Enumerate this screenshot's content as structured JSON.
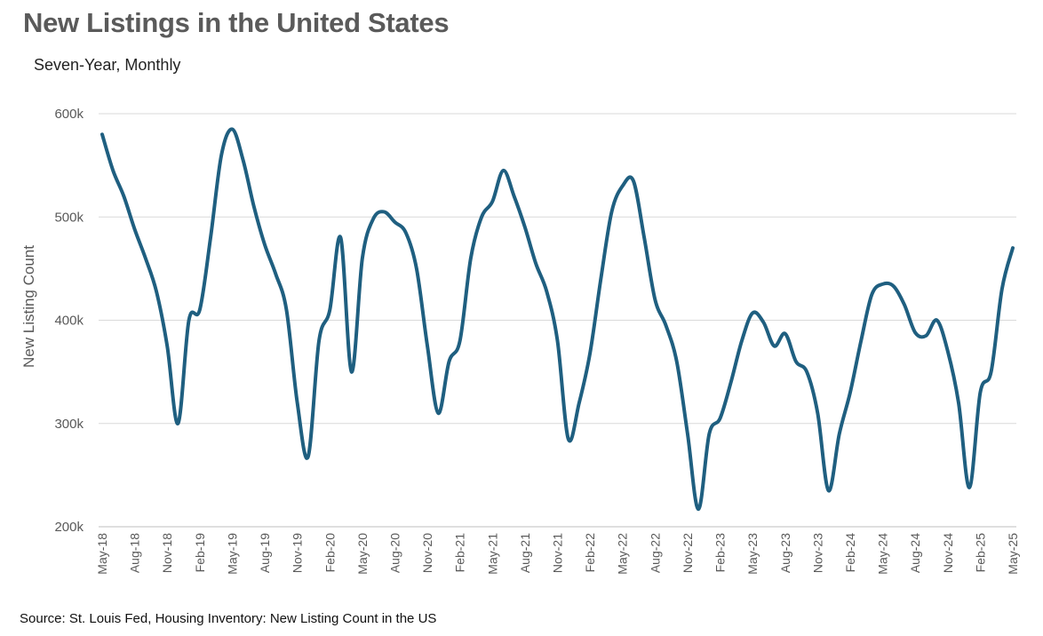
{
  "header": {
    "title": "New Listings in the United States",
    "subtitle": "Seven-Year, Monthly"
  },
  "footer": {
    "source": "Source: St. Louis Fed, Housing Inventory: New Listing Count in the US"
  },
  "colors": {
    "line": "#1f5f80",
    "grid": "#d9d9d9",
    "text": "#595959"
  },
  "chart_data": {
    "type": "line",
    "ylabel": "New Listing Count",
    "xlabel": "",
    "ylim": [
      200000,
      600000
    ],
    "yticks": [
      200000,
      300000,
      400000,
      500000,
      600000
    ],
    "ytick_labels": [
      "200k",
      "300k",
      "400k",
      "500k",
      "600k"
    ],
    "xtick_labels": [
      "May-18",
      "Aug-18",
      "Nov-18",
      "Feb-19",
      "May-19",
      "Aug-19",
      "Nov-19",
      "Feb-20",
      "May-20",
      "Aug-20",
      "Nov-20",
      "Feb-21",
      "May-21",
      "Aug-21",
      "Nov-21",
      "Feb-22",
      "May-22",
      "Aug-22",
      "Nov-22",
      "Feb-23",
      "May-23",
      "Aug-23",
      "Nov-23",
      "Feb-24",
      "May-24",
      "Aug-24",
      "Nov-24",
      "Feb-25",
      "May-25"
    ],
    "grid": true,
    "legend": "none",
    "series": [
      {
        "x": [
          "May-18",
          "Jun-18",
          "Jul-18",
          "Aug-18",
          "Sep-18",
          "Oct-18",
          "Nov-18",
          "Dec-18",
          "Jan-19",
          "Feb-19",
          "Mar-19",
          "Apr-19",
          "May-19",
          "Jun-19",
          "Jul-19",
          "Aug-19",
          "Sep-19",
          "Oct-19",
          "Nov-19",
          "Dec-19",
          "Jan-20",
          "Feb-20",
          "Mar-20",
          "Apr-20",
          "May-20",
          "Jun-20",
          "Jul-20",
          "Aug-20",
          "Sep-20",
          "Oct-20",
          "Nov-20",
          "Dec-20",
          "Jan-21",
          "Feb-21",
          "Mar-21",
          "Apr-21",
          "May-21",
          "Jun-21",
          "Jul-21",
          "Aug-21",
          "Sep-21",
          "Oct-21",
          "Nov-21",
          "Dec-21",
          "Jan-22",
          "Feb-22",
          "Mar-22",
          "Apr-22",
          "May-22",
          "Jun-22",
          "Jul-22",
          "Aug-22",
          "Sep-22",
          "Oct-22",
          "Nov-22",
          "Dec-22",
          "Jan-23",
          "Feb-23",
          "Mar-23",
          "Apr-23",
          "May-23",
          "Jun-23",
          "Jul-23",
          "Aug-23",
          "Sep-23",
          "Oct-23",
          "Nov-23",
          "Dec-23",
          "Jan-24",
          "Feb-24",
          "Mar-24",
          "Apr-24",
          "May-24",
          "Jun-24",
          "Jul-24",
          "Aug-24",
          "Sep-24",
          "Oct-24",
          "Nov-24",
          "Dec-24",
          "Jan-25",
          "Feb-25",
          "Mar-25",
          "Apr-25",
          "May-25"
        ],
        "values": [
          580000,
          545000,
          520000,
          488000,
          460000,
          428000,
          375000,
          300000,
          400000,
          410000,
          480000,
          560000,
          585000,
          555000,
          510000,
          473000,
          445000,
          410000,
          320000,
          268000,
          380000,
          410000,
          480000,
          350000,
          460000,
          498000,
          505000,
          495000,
          485000,
          450000,
          375000,
          310000,
          360000,
          380000,
          460000,
          500000,
          515000,
          545000,
          520000,
          490000,
          455000,
          428000,
          380000,
          285000,
          320000,
          368000,
          440000,
          505000,
          530000,
          535000,
          480000,
          420000,
          395000,
          360000,
          290000,
          217000,
          290000,
          305000,
          340000,
          380000,
          407000,
          398000,
          375000,
          387000,
          360000,
          350000,
          310000,
          235000,
          290000,
          330000,
          380000,
          425000,
          435000,
          433000,
          415000,
          388000,
          385000,
          400000,
          370000,
          320000,
          238000,
          330000,
          350000,
          430000,
          470000
        ]
      }
    ]
  }
}
